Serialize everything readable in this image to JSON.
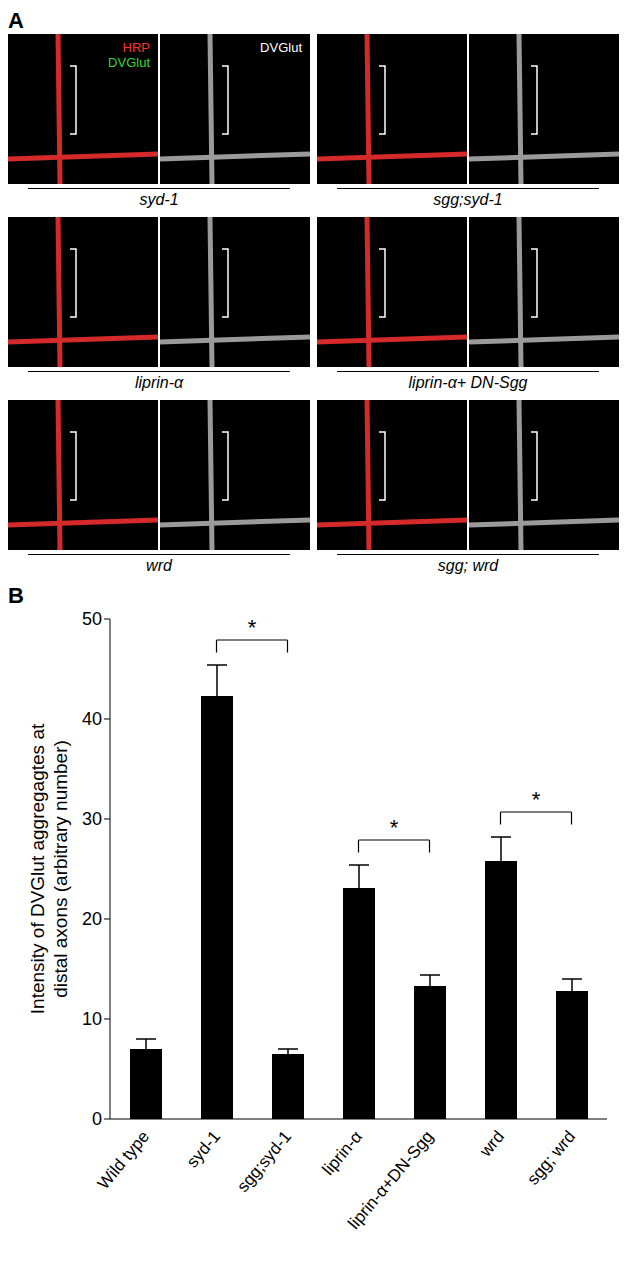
{
  "panel_a": {
    "label": "A",
    "merge_labels": [
      {
        "text": "HRP",
        "color": "#ff3030"
      },
      {
        "text": "DVGlut",
        "color": "#33d633"
      }
    ],
    "single_label": {
      "text": "DVGlut",
      "color": "#ffffff"
    },
    "genotypes": [
      [
        "syd-1",
        "sgg;syd-1"
      ],
      [
        "liprin-α",
        "liprin-α+ DN-Sgg"
      ],
      [
        "wrd",
        "sgg; wrd"
      ]
    ]
  },
  "chart_data": {
    "type": "bar",
    "panel_label": "B",
    "ylabel": [
      "Intensity of DVGlut aggregagtes at",
      "distal axons (arbitrary number)"
    ],
    "categories": [
      "Wild type",
      "syd-1",
      "sgg;syd-1",
      "liprin-α",
      "liprin-α+DN-Sgg",
      "wrd",
      "sgg; wrd"
    ],
    "values": [
      7,
      42.3,
      6.5,
      23.1,
      13.3,
      25.8,
      12.8
    ],
    "errors": [
      1,
      3.1,
      0.5,
      2.3,
      1.1,
      2.4,
      1.2
    ],
    "color": "#000000",
    "ylim": [
      0,
      50
    ],
    "yticks": [
      0,
      10,
      20,
      30,
      40,
      50
    ],
    "significance": [
      {
        "from": "syd-1",
        "to": "sgg;syd-1",
        "label": "*"
      },
      {
        "from": "liprin-α",
        "to": "liprin-α+DN-Sgg",
        "label": "*"
      },
      {
        "from": "wrd",
        "to": "sgg; wrd",
        "label": "*"
      }
    ]
  }
}
